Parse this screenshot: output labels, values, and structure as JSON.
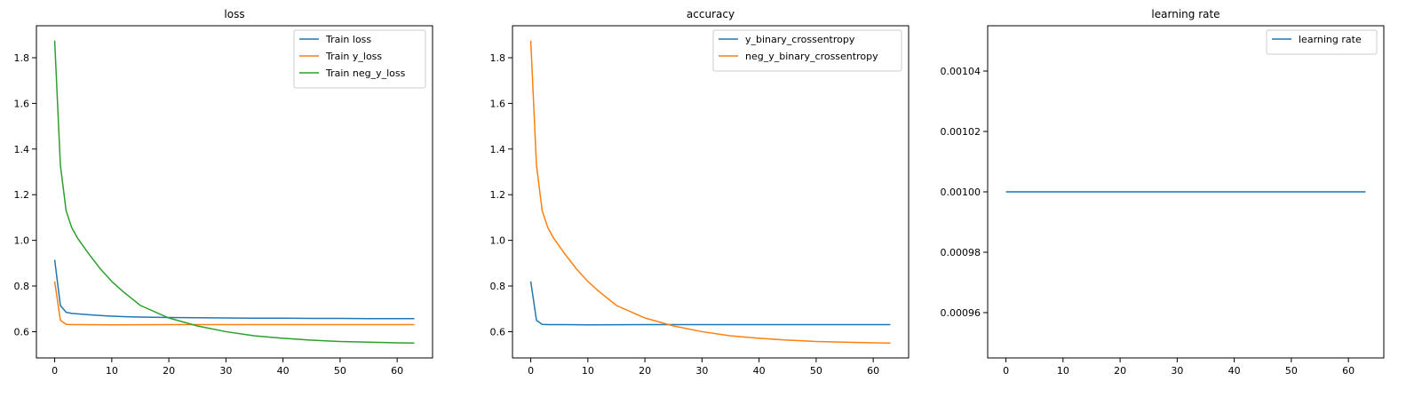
{
  "chart_data": [
    {
      "type": "line",
      "title": "loss",
      "xlabel": "",
      "ylabel": "",
      "xlim": [
        -3.2,
        66.2
      ],
      "ylim": [
        0.485,
        1.94
      ],
      "xticks": [
        0,
        10,
        20,
        30,
        40,
        50,
        60
      ],
      "yticks": [
        0.6,
        0.8,
        1.0,
        1.2,
        1.4,
        1.6,
        1.8
      ],
      "ytick_labels": [
        "0.6",
        "0.8",
        "1.0",
        "1.2",
        "1.4",
        "1.6",
        "1.8"
      ],
      "grid": false,
      "legend_position": "top-right",
      "series": [
        {
          "name": "Train loss",
          "color": "#1f77b4",
          "x": [
            0,
            1,
            2,
            3,
            4,
            5,
            6,
            8,
            10,
            12,
            15,
            20,
            25,
            30,
            35,
            40,
            45,
            50,
            55,
            60,
            63
          ],
          "y": [
            0.915,
            0.715,
            0.685,
            0.68,
            0.678,
            0.676,
            0.674,
            0.671,
            0.668,
            0.666,
            0.664,
            0.662,
            0.661,
            0.66,
            0.659,
            0.659,
            0.658,
            0.658,
            0.657,
            0.657,
            0.657
          ]
        },
        {
          "name": "Train y_loss",
          "color": "#ff7f0e",
          "x": [
            0,
            1,
            2,
            3,
            5,
            10,
            20,
            30,
            40,
            50,
            63
          ],
          "y": [
            0.82,
            0.65,
            0.632,
            0.631,
            0.631,
            0.63,
            0.631,
            0.631,
            0.631,
            0.631,
            0.631
          ]
        },
        {
          "name": "Train neg_y_loss",
          "color": "#2ca02c",
          "x": [
            0,
            1,
            2,
            3,
            4,
            5,
            6,
            8,
            10,
            12,
            15,
            20,
            25,
            30,
            35,
            40,
            45,
            50,
            55,
            60,
            63
          ],
          "y": [
            1.875,
            1.33,
            1.13,
            1.055,
            1.01,
            0.975,
            0.94,
            0.875,
            0.82,
            0.775,
            0.715,
            0.66,
            0.625,
            0.6,
            0.582,
            0.571,
            0.563,
            0.557,
            0.554,
            0.551,
            0.55
          ]
        }
      ]
    },
    {
      "type": "line",
      "title": "accuracy",
      "xlabel": "",
      "ylabel": "",
      "xlim": [
        -3.2,
        66.2
      ],
      "ylim": [
        0.485,
        1.94
      ],
      "xticks": [
        0,
        10,
        20,
        30,
        40,
        50,
        60
      ],
      "yticks": [
        0.6,
        0.8,
        1.0,
        1.2,
        1.4,
        1.6,
        1.8
      ],
      "ytick_labels": [
        "0.6",
        "0.8",
        "1.0",
        "1.2",
        "1.4",
        "1.6",
        "1.8"
      ],
      "grid": false,
      "legend_position": "top-right",
      "series": [
        {
          "name": "y_binary_crossentropy",
          "color": "#1f77b4",
          "x": [
            0,
            1,
            2,
            3,
            5,
            10,
            20,
            30,
            40,
            50,
            63
          ],
          "y": [
            0.82,
            0.65,
            0.632,
            0.631,
            0.631,
            0.63,
            0.631,
            0.631,
            0.631,
            0.631,
            0.631
          ]
        },
        {
          "name": "neg_y_binary_crossentropy",
          "color": "#ff7f0e",
          "x": [
            0,
            1,
            2,
            3,
            4,
            5,
            6,
            8,
            10,
            12,
            15,
            20,
            25,
            30,
            35,
            40,
            45,
            50,
            55,
            60,
            63
          ],
          "y": [
            1.875,
            1.33,
            1.13,
            1.055,
            1.01,
            0.975,
            0.94,
            0.875,
            0.82,
            0.775,
            0.715,
            0.66,
            0.625,
            0.6,
            0.582,
            0.571,
            0.563,
            0.557,
            0.554,
            0.551,
            0.55
          ]
        }
      ]
    },
    {
      "type": "line",
      "title": "learning rate",
      "xlabel": "",
      "ylabel": "",
      "xlim": [
        -3.2,
        66.2
      ],
      "ylim": [
        0.000945,
        0.001055
      ],
      "xticks": [
        0,
        10,
        20,
        30,
        40,
        50,
        60
      ],
      "yticks": [
        0.00096,
        0.00098,
        0.001,
        0.00102,
        0.00104
      ],
      "ytick_labels": [
        "0.00096",
        "0.00098",
        "0.00100",
        "0.00102",
        "0.00104"
      ],
      "grid": false,
      "legend_position": "top-right",
      "series": [
        {
          "name": "learning rate",
          "color": "#1f77b4",
          "x": [
            0,
            63
          ],
          "y": [
            0.001,
            0.001
          ]
        }
      ]
    }
  ]
}
